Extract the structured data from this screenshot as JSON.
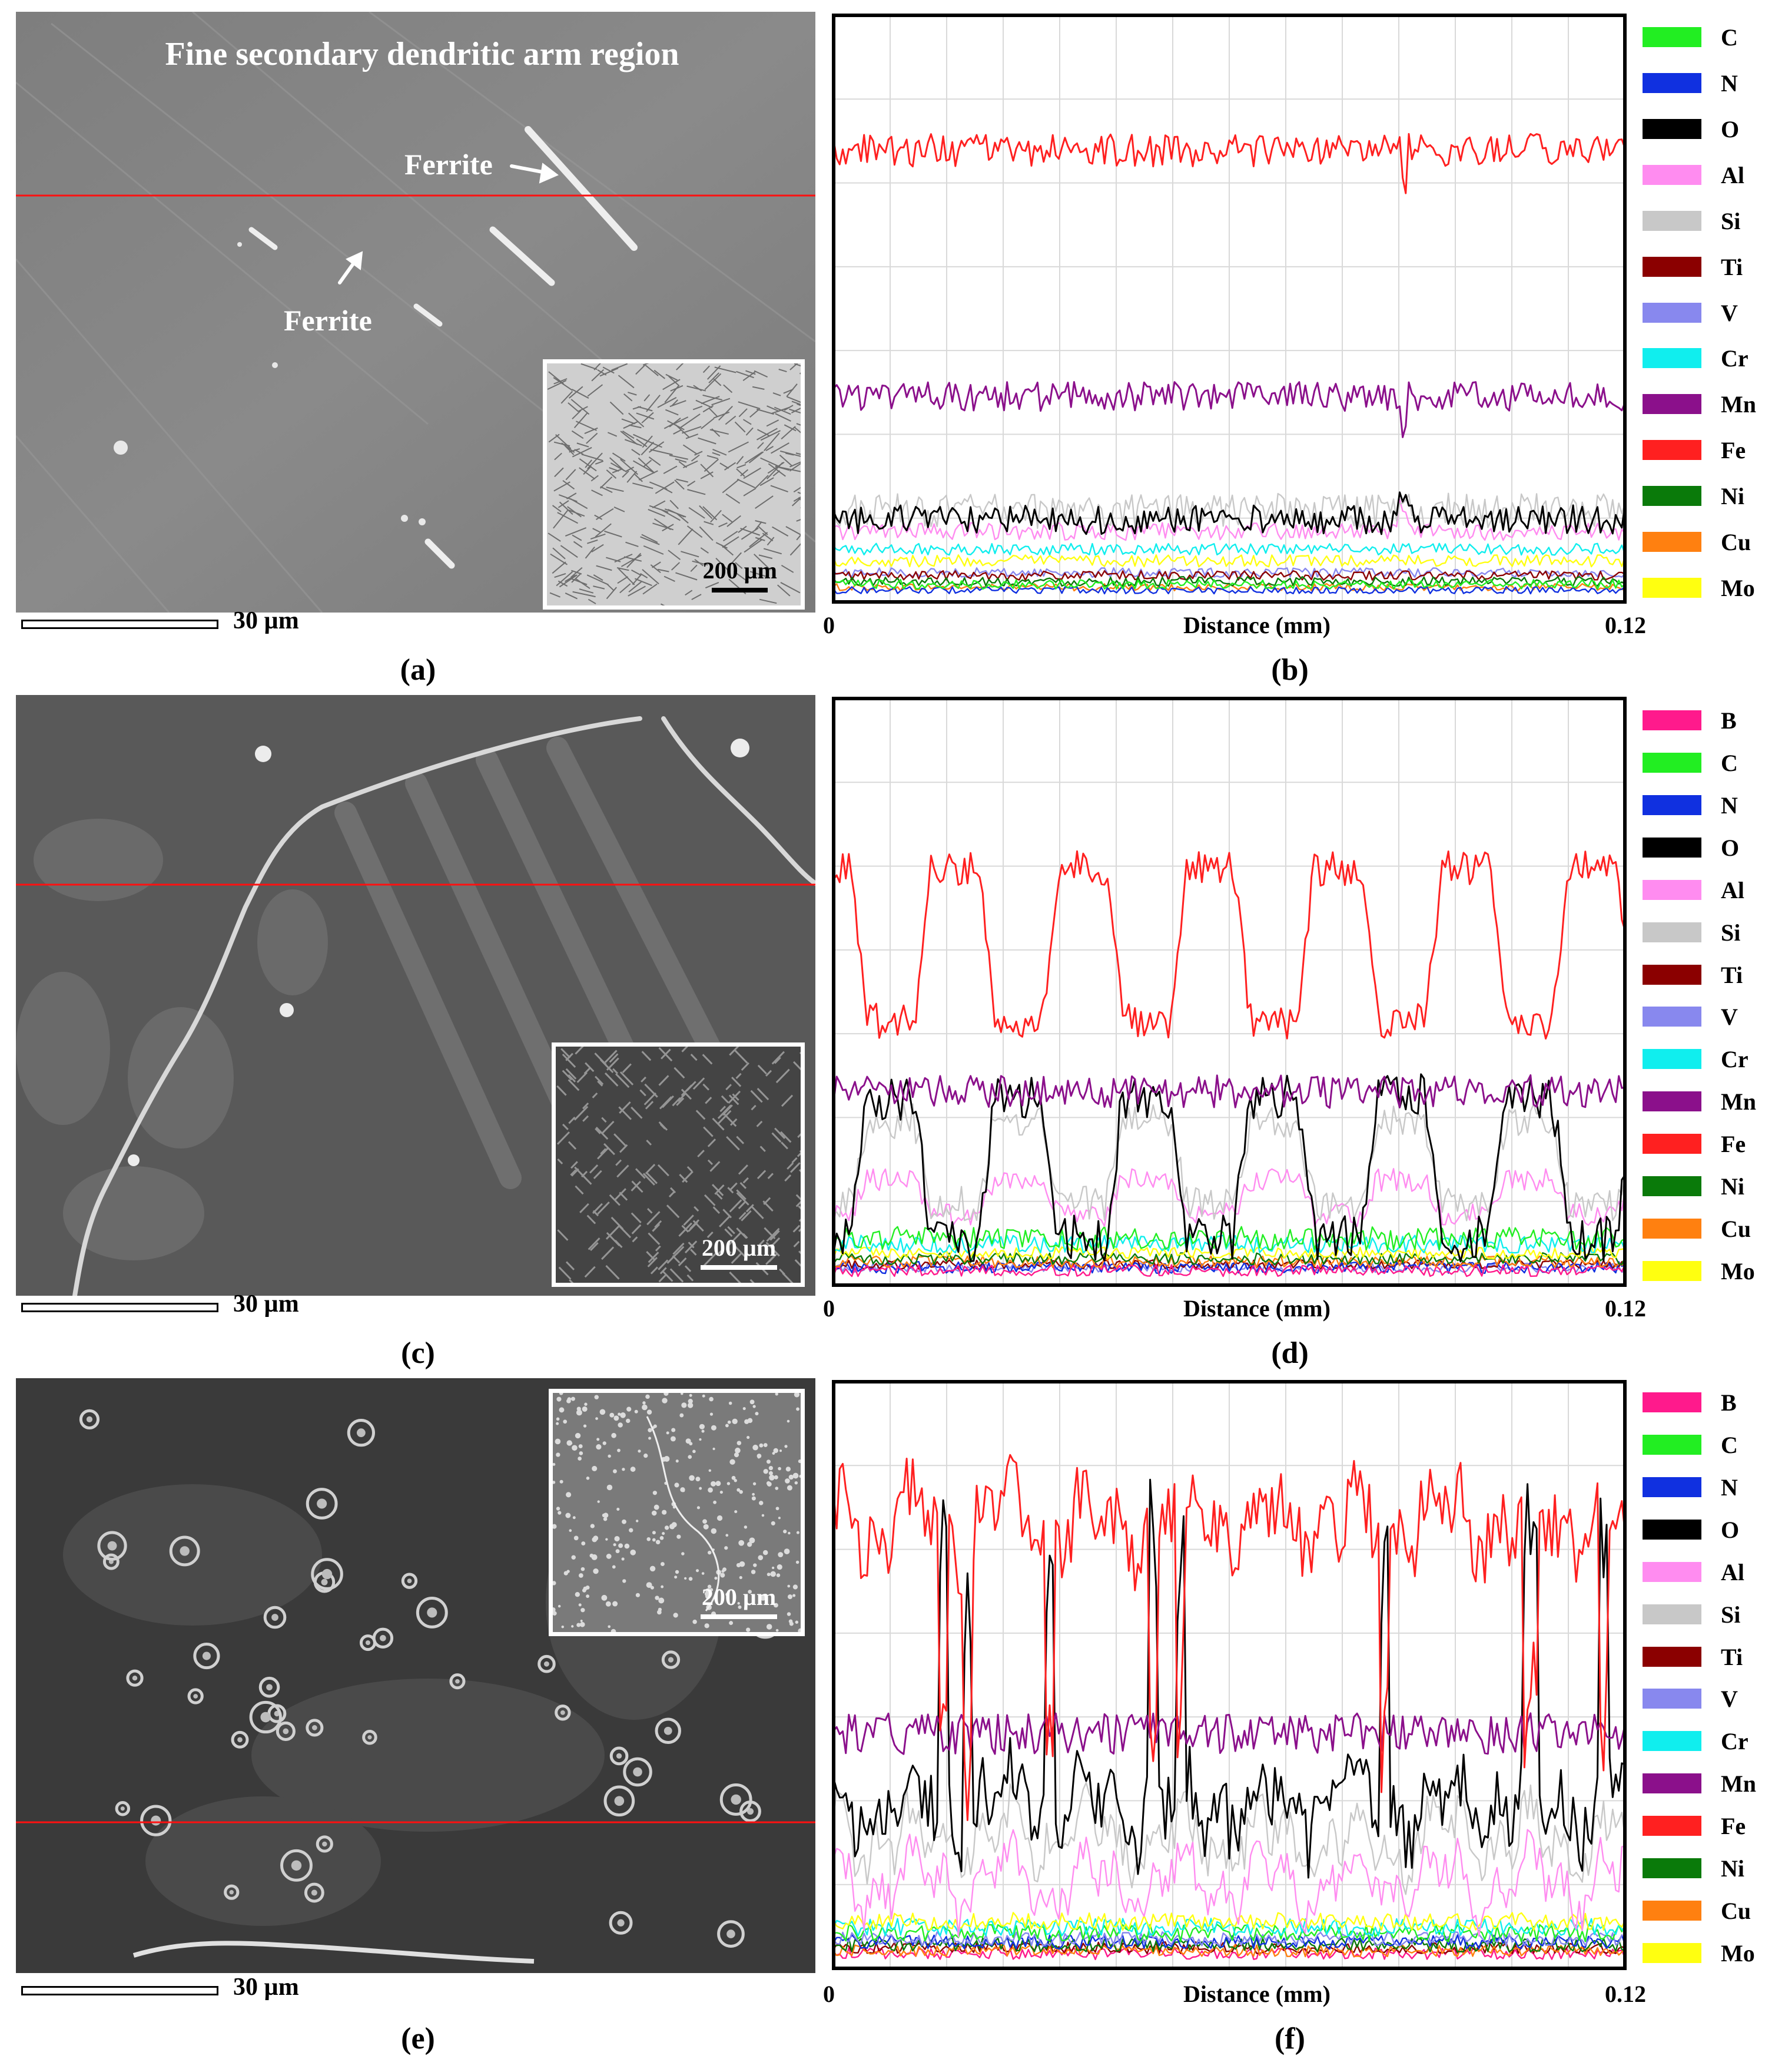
{
  "panels": {
    "a": {
      "letter": "(a)",
      "title": "Fine secondary dendritic arm region",
      "labels": [
        "Ferrite",
        "Ferrite"
      ],
      "scale": "30 µm",
      "inset_scale": "200 µm"
    },
    "b": {
      "letter": "(b)",
      "x_start": "0",
      "x_end": "0.12",
      "xlabel": "Distance (mm)",
      "legend": [
        "C",
        "N",
        "O",
        "Al",
        "Si",
        "Ti",
        "V",
        "Cr",
        "Mn",
        "Fe",
        "Ni",
        "Cu",
        "Mo"
      ]
    },
    "c": {
      "letter": "(c)",
      "scale": "30 µm",
      "inset_scale": "200 µm"
    },
    "d": {
      "letter": "(d)",
      "x_start": "0",
      "x_end": "0.12",
      "xlabel": "Distance (mm)",
      "legend": [
        "B",
        "C",
        "N",
        "O",
        "Al",
        "Si",
        "Ti",
        "V",
        "Cr",
        "Mn",
        "Fe",
        "Ni",
        "Cu",
        "Mo"
      ]
    },
    "e": {
      "letter": "(e)",
      "scale": "30 µm",
      "inset_scale": "200 µm"
    },
    "f": {
      "letter": "(f)",
      "x_start": "0",
      "x_end": "0.12",
      "xlabel": "Distance (mm)",
      "legend": [
        "B",
        "C",
        "N",
        "O",
        "Al",
        "Si",
        "Ti",
        "V",
        "Cr",
        "Mn",
        "Fe",
        "Ni",
        "Cu",
        "Mo"
      ]
    }
  },
  "element_colors": {
    "B": "#ff1a8c",
    "C": "#22ee22",
    "N": "#1030e0",
    "O": "#000000",
    "Al": "#ff8cf0",
    "Si": "#c8c8c8",
    "Ti": "#8b0000",
    "V": "#8888ee",
    "Cr": "#10eeee",
    "Mn": "#8b108b",
    "Fe": "#ff2020",
    "Ni": "#0a7a0a",
    "Cu": "#ff8010",
    "Mo": "#ffff10"
  },
  "chart_data": [
    {
      "type": "line",
      "panel": "b",
      "xlabel": "Distance (mm)",
      "xlim": [
        0,
        0.12
      ],
      "y_axis_labeled": false,
      "series": [
        {
          "name": "Fe",
          "shape": "flat",
          "level": 0.77,
          "amp": 0.028,
          "dip": 0.07
        },
        {
          "name": "Mn",
          "shape": "flat",
          "level": 0.35,
          "amp": 0.025,
          "dip": 0.07
        },
        {
          "name": "O",
          "shape": "flat",
          "level": 0.14,
          "amp": 0.025,
          "spike": 0.05
        },
        {
          "name": "Si",
          "shape": "flat",
          "level": 0.155,
          "amp": 0.03
        },
        {
          "name": "Al",
          "shape": "flat",
          "level": 0.12,
          "amp": 0.015,
          "spike": 0.04
        },
        {
          "name": "Cr",
          "shape": "flat",
          "level": 0.09,
          "amp": 0.01
        },
        {
          "name": "Mo",
          "shape": "flat",
          "level": 0.07,
          "amp": 0.01
        },
        {
          "name": "C",
          "shape": "flat",
          "level": 0.03,
          "amp": 0.008
        },
        {
          "name": "Ni",
          "shape": "flat",
          "level": 0.035,
          "amp": 0.008
        },
        {
          "name": "N",
          "shape": "flat",
          "level": 0.02,
          "amp": 0.006
        },
        {
          "name": "Ti",
          "shape": "flat",
          "level": 0.045,
          "amp": 0.008
        },
        {
          "name": "V",
          "shape": "flat",
          "level": 0.05,
          "amp": 0.008
        },
        {
          "name": "Cu",
          "shape": "flat",
          "level": 0.025,
          "amp": 0.006
        }
      ]
    },
    {
      "type": "line",
      "panel": "d",
      "xlabel": "Distance (mm)",
      "xlim": [
        0,
        0.12
      ],
      "y_axis_labeled": false,
      "series": [
        {
          "name": "Fe",
          "shape": "wave",
          "level": 0.58,
          "depth": 0.13,
          "amp": 0.03,
          "phase": 0.3
        },
        {
          "name": "Mn",
          "shape": "flat",
          "level": 0.33,
          "amp": 0.028
        },
        {
          "name": "O",
          "shape": "wave",
          "level": 0.2,
          "depth": -0.12,
          "amp": 0.04,
          "phase": 0.3
        },
        {
          "name": "Si",
          "shape": "wave",
          "level": 0.21,
          "depth": -0.07,
          "amp": 0.03,
          "phase": 0.3
        },
        {
          "name": "Al",
          "shape": "wave",
          "level": 0.15,
          "depth": -0.03,
          "amp": 0.02,
          "phase": 0.3
        },
        {
          "name": "C",
          "shape": "flat",
          "level": 0.08,
          "amp": 0.02
        },
        {
          "name": "Cr",
          "shape": "flat",
          "level": 0.07,
          "amp": 0.015
        },
        {
          "name": "Mo",
          "shape": "flat",
          "level": 0.055,
          "amp": 0.01
        },
        {
          "name": "Ni",
          "shape": "flat",
          "level": 0.045,
          "amp": 0.01
        },
        {
          "name": "Cu",
          "shape": "flat",
          "level": 0.04,
          "amp": 0.01
        },
        {
          "name": "B",
          "shape": "flat",
          "level": 0.025,
          "amp": 0.01
        },
        {
          "name": "N",
          "shape": "flat",
          "level": 0.03,
          "amp": 0.01
        },
        {
          "name": "Ti",
          "shape": "flat",
          "level": 0.035,
          "amp": 0.008
        },
        {
          "name": "V",
          "shape": "flat",
          "level": 0.03,
          "amp": 0.008
        }
      ]
    },
    {
      "type": "line",
      "panel": "f",
      "xlabel": "Distance (mm)",
      "xlim": [
        0,
        0.12
      ],
      "y_axis_labeled": false,
      "series": [
        {
          "name": "Fe",
          "shape": "rough",
          "level": 0.76,
          "amp": 0.06,
          "drops": 0.45
        },
        {
          "name": "Mn",
          "shape": "flat",
          "level": 0.4,
          "amp": 0.035
        },
        {
          "name": "O",
          "shape": "rough",
          "level": 0.28,
          "amp": 0.06,
          "spikes": 0.5
        },
        {
          "name": "Si",
          "shape": "rough",
          "level": 0.22,
          "amp": 0.04
        },
        {
          "name": "Al",
          "shape": "rough",
          "level": 0.15,
          "amp": 0.035
        },
        {
          "name": "Mo",
          "shape": "flat",
          "level": 0.08,
          "amp": 0.015
        },
        {
          "name": "Cr",
          "shape": "flat",
          "level": 0.07,
          "amp": 0.015
        },
        {
          "name": "C",
          "shape": "flat",
          "level": 0.06,
          "amp": 0.015
        },
        {
          "name": "V",
          "shape": "flat",
          "level": 0.05,
          "amp": 0.012
        },
        {
          "name": "N",
          "shape": "flat",
          "level": 0.045,
          "amp": 0.012
        },
        {
          "name": "Ni",
          "shape": "flat",
          "level": 0.04,
          "amp": 0.012
        },
        {
          "name": "Cu",
          "shape": "flat",
          "level": 0.03,
          "amp": 0.01
        },
        {
          "name": "Ti",
          "shape": "flat",
          "level": 0.035,
          "amp": 0.01
        },
        {
          "name": "B",
          "shape": "flat",
          "level": 0.025,
          "amp": 0.01
        }
      ]
    }
  ]
}
